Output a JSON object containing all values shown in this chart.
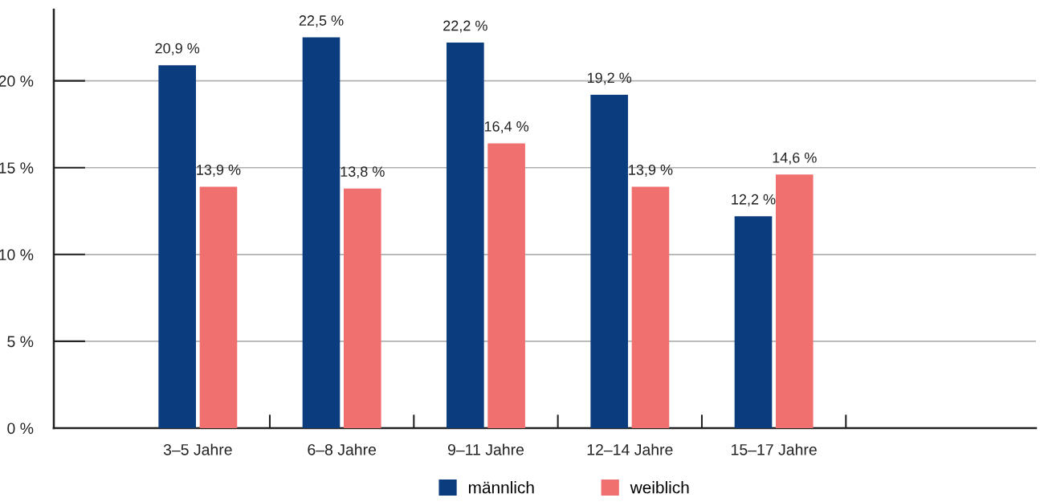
{
  "chart_data": {
    "type": "bar",
    "categories": [
      "3–5 Jahre",
      "6–8 Jahre",
      "9–11 Jahre",
      "12–14 Jahre",
      "15–17 Jahre"
    ],
    "series": [
      {
        "name": "männlich",
        "color": "#0b3d7e",
        "values": [
          20.9,
          22.5,
          22.2,
          19.2,
          12.2
        ],
        "value_labels": [
          "20,9 %",
          "22,5 %",
          "22,2 %",
          "19,2 %",
          "12,2 %"
        ]
      },
      {
        "name": "weiblich",
        "color": "#f07070",
        "values": [
          13.9,
          13.8,
          16.4,
          13.9,
          14.6
        ],
        "value_labels": [
          "13,9 %",
          "13,8 %",
          "16,4 %",
          "13,9 %",
          "14,6 %"
        ]
      }
    ],
    "ylim": [
      0,
      24.1
    ],
    "yticks": [
      {
        "value": 0,
        "label": "0 %"
      },
      {
        "value": 5,
        "label": "5 %"
      },
      {
        "value": 10,
        "label": "10 %"
      },
      {
        "value": 15,
        "label": "15 %"
      },
      {
        "value": 20,
        "label": "20 %"
      }
    ],
    "grid": "y",
    "legend": "bottom"
  }
}
